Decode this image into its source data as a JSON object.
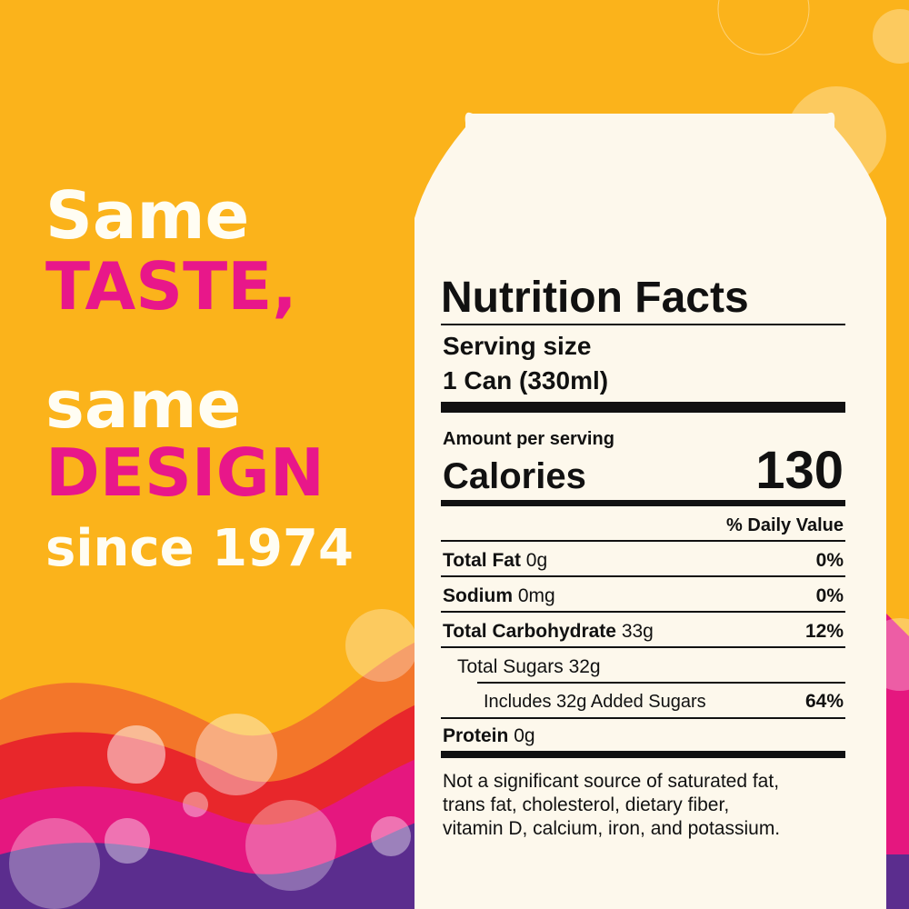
{
  "headline": {
    "lines": [
      "Same",
      "TASTE,",
      "same",
      "DESIGN",
      "since 1974"
    ]
  },
  "nutrition": {
    "title": "Nutrition Facts",
    "serving_label": "Serving size",
    "serving_size": "1 Can (330ml)",
    "amount_label": "Amount per serving",
    "calories_label": "Calories",
    "calories": "130",
    "dv_header": "% Daily Value",
    "rows": [
      {
        "name": "Total Fat",
        "amount": "0g",
        "dv": "0%"
      },
      {
        "name": "Sodium",
        "amount": "0mg",
        "dv": "0%"
      },
      {
        "name": "Total Carbohydrate",
        "amount": "33g",
        "dv": "12%"
      },
      {
        "name": "Total Sugars 32g"
      },
      {
        "name": "Includes 32g Added Sugars",
        "dv": "64%"
      },
      {
        "name": "Protein",
        "amount": "0g"
      }
    ],
    "footnote": [
      "Not a significant source of saturated fat,",
      "trans fat, cholesterol, dietary fiber,",
      "vitamin D, calcium, iron, and potassium."
    ]
  }
}
